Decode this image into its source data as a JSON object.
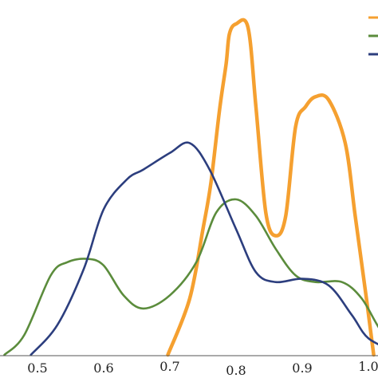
{
  "chart_data": {
    "type": "line",
    "title": "",
    "xlabel": "",
    "ylabel": "",
    "xlim": [
      0.45,
      1.05
    ],
    "ylim": [
      0,
      1
    ],
    "grid": false,
    "legend": "top-right",
    "x_ticks": [
      "0.5",
      "0.6",
      "0.7",
      "0.8",
      "0.9",
      "1.0"
    ],
    "series": [
      {
        "color": "#f5a030",
        "values": [
          [
            0.697,
            0.0
          ],
          [
            0.73,
            0.17
          ],
          [
            0.75,
            0.38
          ],
          [
            0.762,
            0.52
          ],
          [
            0.775,
            0.74
          ],
          [
            0.785,
            0.88
          ],
          [
            0.79,
            0.97
          ],
          [
            0.8,
            1.0
          ],
          [
            0.818,
            0.99
          ],
          [
            0.83,
            0.75
          ],
          [
            0.845,
            0.43
          ],
          [
            0.86,
            0.36
          ],
          [
            0.875,
            0.42
          ],
          [
            0.89,
            0.69
          ],
          [
            0.905,
            0.75
          ],
          [
            0.92,
            0.78
          ],
          [
            0.94,
            0.77
          ],
          [
            0.965,
            0.64
          ],
          [
            0.98,
            0.42
          ],
          [
            0.997,
            0.17
          ],
          [
            1.008,
            0.0
          ]
        ]
      },
      {
        "color": "#5b8c3c",
        "values": [
          [
            0.45,
            0.0
          ],
          [
            0.48,
            0.06
          ],
          [
            0.52,
            0.24
          ],
          [
            0.545,
            0.28
          ],
          [
            0.575,
            0.29
          ],
          [
            0.6,
            0.27
          ],
          [
            0.63,
            0.18
          ],
          [
            0.66,
            0.14
          ],
          [
            0.7,
            0.18
          ],
          [
            0.74,
            0.28
          ],
          [
            0.77,
            0.43
          ],
          [
            0.8,
            0.47
          ],
          [
            0.83,
            0.42
          ],
          [
            0.86,
            0.32
          ],
          [
            0.89,
            0.24
          ],
          [
            0.92,
            0.22
          ],
          [
            0.96,
            0.22
          ],
          [
            0.99,
            0.17
          ],
          [
            1.02,
            0.07
          ],
          [
            1.05,
            0.02
          ]
        ]
      },
      {
        "color": "#2c3e7e",
        "values": [
          [
            0.49,
            0.0
          ],
          [
            0.53,
            0.09
          ],
          [
            0.57,
            0.26
          ],
          [
            0.6,
            0.44
          ],
          [
            0.635,
            0.53
          ],
          [
            0.66,
            0.56
          ],
          [
            0.7,
            0.61
          ],
          [
            0.73,
            0.64
          ],
          [
            0.76,
            0.56
          ],
          [
            0.8,
            0.38
          ],
          [
            0.83,
            0.25
          ],
          [
            0.86,
            0.22
          ],
          [
            0.9,
            0.23
          ],
          [
            0.94,
            0.21
          ],
          [
            0.975,
            0.12
          ],
          [
            1.0,
            0.05
          ],
          [
            1.04,
            0.01
          ]
        ]
      }
    ]
  }
}
